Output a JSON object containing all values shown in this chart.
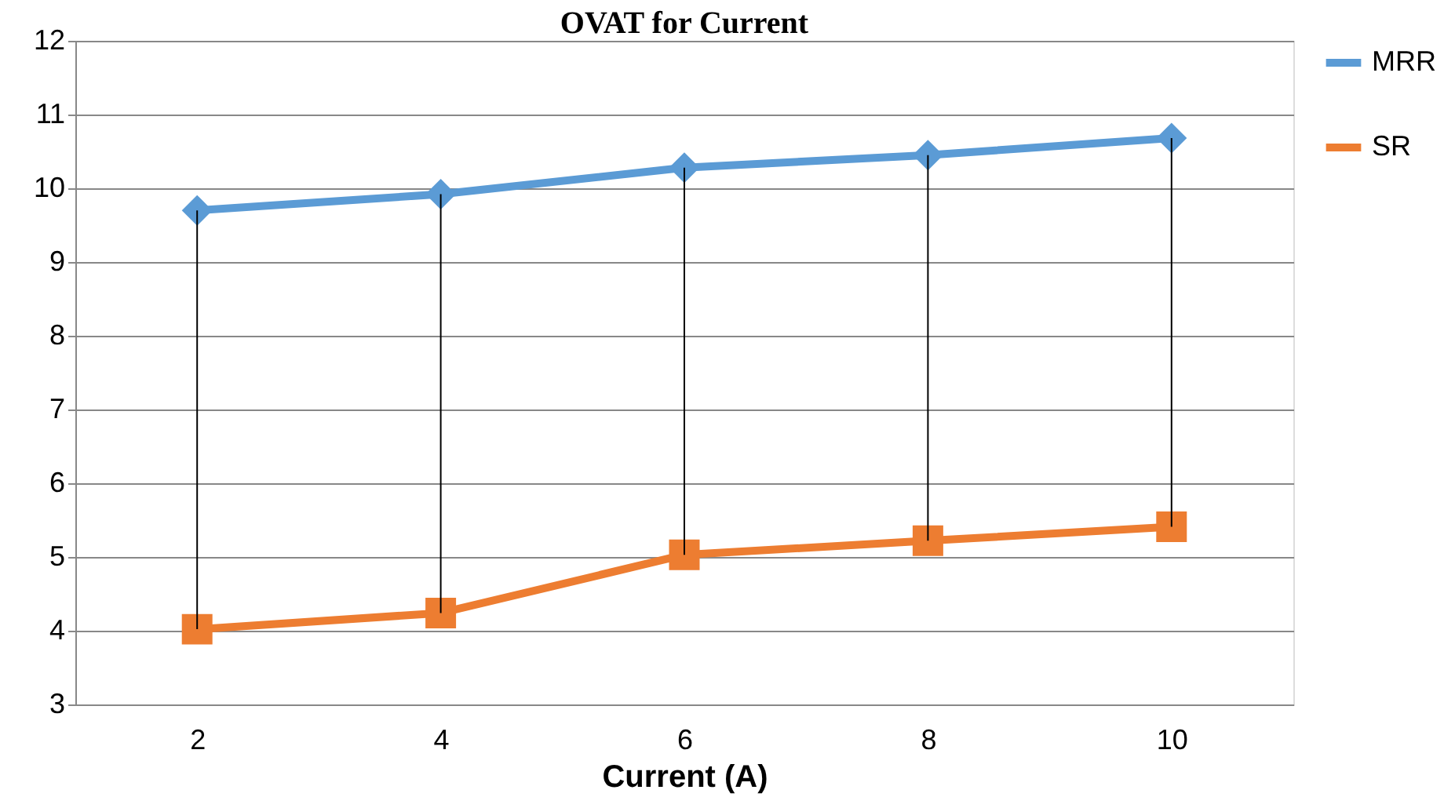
{
  "chart_data": {
    "type": "line",
    "title": "OVAT for Current",
    "xlabel": "Current (A)",
    "categories": [
      "2",
      "4",
      "6",
      "8",
      "10"
    ],
    "series": [
      {
        "name": "MRR",
        "color": "#5b9bd5",
        "marker": "diamond",
        "values": [
          9.7,
          9.92,
          10.28,
          10.45,
          10.68
        ],
        "errors": [
          [
            4.02,
            9.7
          ],
          [
            4.24,
            9.92
          ],
          [
            5.03,
            10.28
          ],
          [
            5.22,
            10.45
          ],
          [
            5.41,
            10.68
          ]
        ]
      },
      {
        "name": "SR",
        "color": "#ed7d31",
        "marker": "square",
        "values": [
          4.02,
          4.24,
          5.03,
          5.22,
          5.41
        ]
      }
    ],
    "ylim": [
      3,
      12
    ],
    "yticks": [
      3,
      4,
      5,
      6,
      7,
      8,
      9,
      10,
      11,
      12
    ],
    "grid": "y",
    "legend": "right",
    "line_style": "solid"
  }
}
